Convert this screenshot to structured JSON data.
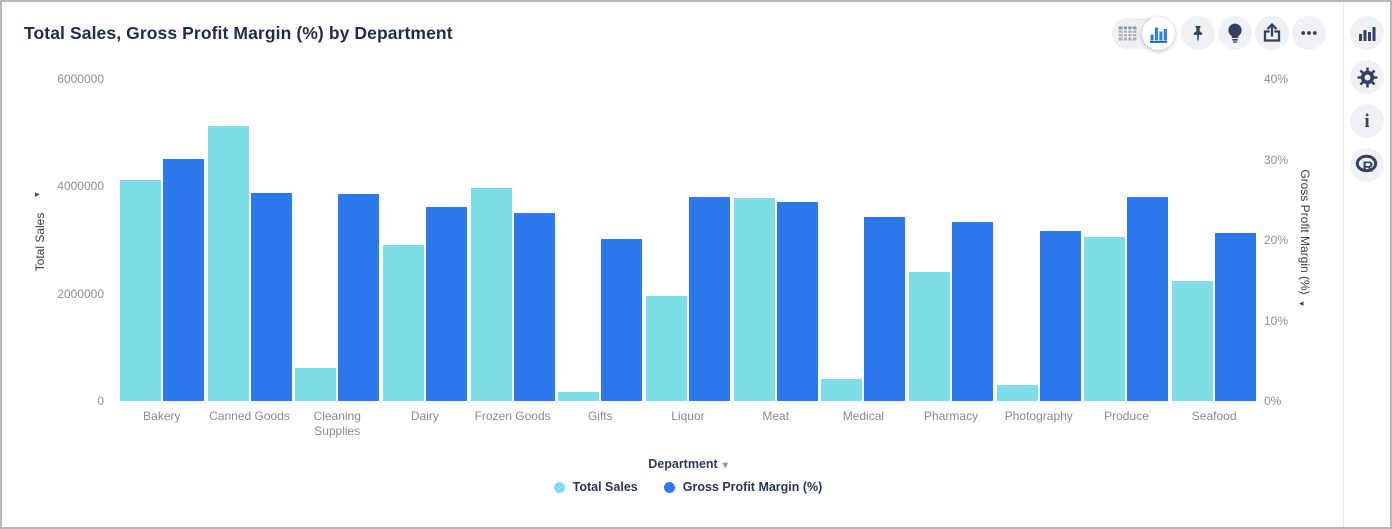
{
  "widget": {
    "title": "Total Sales, Gross Profit Margin (%) by Department"
  },
  "toolbar": {
    "view_toggle": {
      "options": [
        "table-view-icon",
        "bar-chart-view-icon"
      ],
      "selected": "bar-chart-view-icon"
    },
    "buttons": [
      "pin-icon",
      "lightbulb-icon",
      "export-icon",
      "more-options-icon"
    ]
  },
  "right_sidebar": {
    "buttons": [
      "bar-chart-icon",
      "settings-gear-icon",
      "info-icon",
      "r-logo-icon"
    ]
  },
  "glyphs": {
    "left_axis_sort_arrow": "▸",
    "right_axis_sort_arrow": "◂",
    "department_caret": "▾"
  },
  "colors": {
    "total_sales": "#7DDEE7",
    "gross_profit_margin": "#2C79EB",
    "icon_navy": "#35425f",
    "title_navy": "#1f2c4c"
  },
  "chart_data": {
    "type": "bar",
    "title": "Total Sales, Gross Profit Margin (%) by Department",
    "categories": [
      "Bakery",
      "Canned Goods",
      "Cleaning Supplies",
      "Dairy",
      "Frozen Goods",
      "Gifts",
      "Liquor",
      "Meat",
      "Medical",
      "Pharmacy",
      "Photography",
      "Produce",
      "Seafood"
    ],
    "series": [
      {
        "name": "Total Sales",
        "axis": "left",
        "color": "#7DDEE7",
        "values": [
          4110000,
          5130000,
          620000,
          2900000,
          3970000,
          160000,
          1960000,
          3790000,
          410000,
          2400000,
          300000,
          3050000,
          2240000
        ]
      },
      {
        "name": "Gross Profit Margin (%)",
        "axis": "right",
        "color": "#2C79EB",
        "values": [
          30.0,
          25.8,
          25.7,
          24.1,
          23.4,
          20.1,
          25.4,
          24.7,
          22.9,
          22.2,
          21.1,
          25.3,
          20.9
        ]
      }
    ],
    "x_axis": {
      "label": "Department"
    },
    "y_axis_left": {
      "label": "Total Sales",
      "ticks": [
        0,
        2000000,
        4000000,
        6000000
      ],
      "max": 6000000
    },
    "y_axis_right": {
      "label": "Gross Profit Margin (%)",
      "ticks": [
        0,
        10,
        20,
        30,
        40
      ],
      "max": 40,
      "suffix": "%"
    },
    "legend": {
      "position": "bottom"
    },
    "grid": false
  }
}
